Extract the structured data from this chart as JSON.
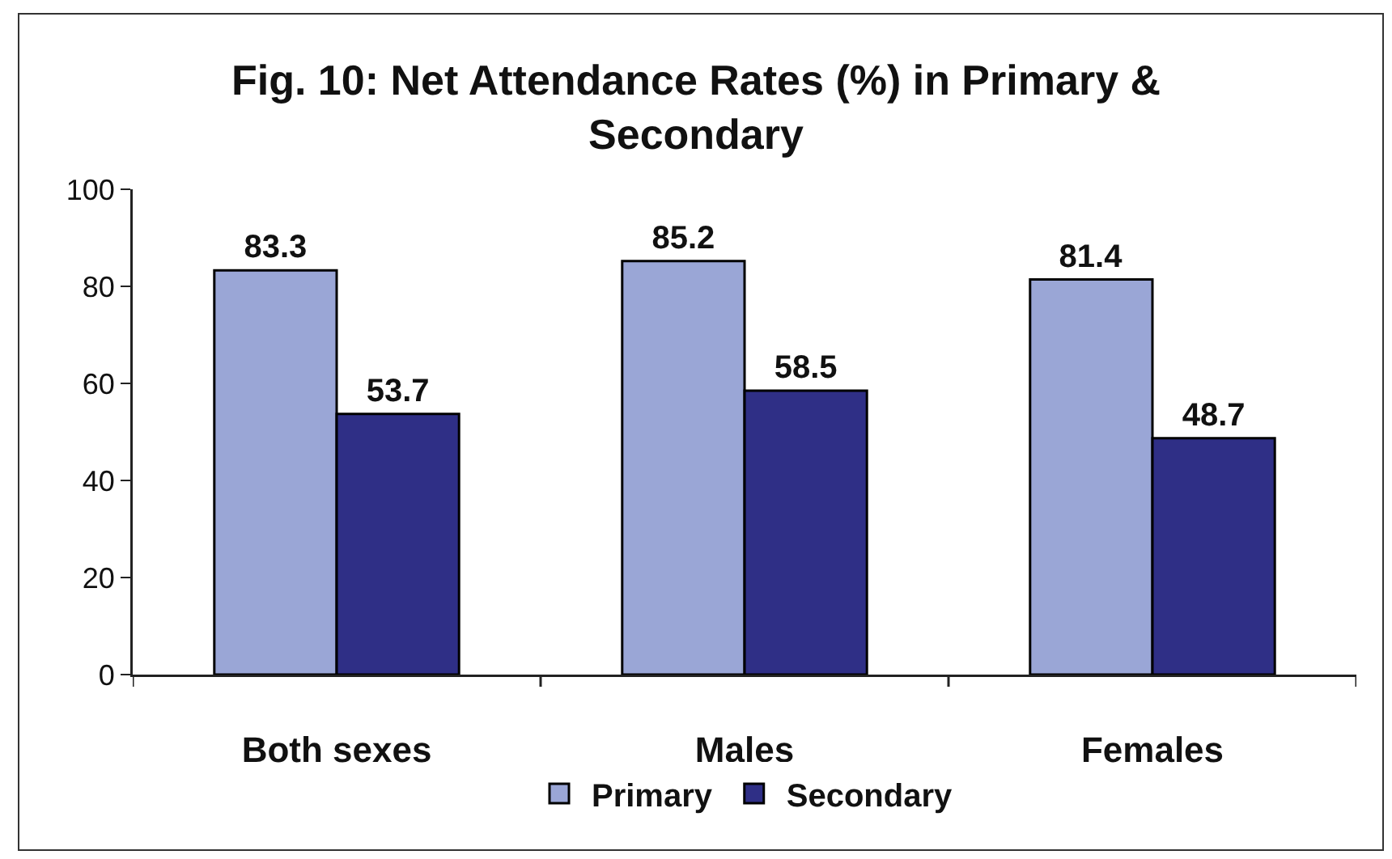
{
  "chart_data": {
    "type": "bar",
    "title": "Fig. 10: Net Attendance Rates (%) in Primary & Secondary",
    "categories": [
      "Both sexes",
      "Males",
      "Females"
    ],
    "series": [
      {
        "name": "Primary",
        "color": "#9aa6d6",
        "values": [
          83.3,
          85.2,
          81.4
        ]
      },
      {
        "name": "Secondary",
        "color": "#2f2f86",
        "values": [
          53.7,
          58.5,
          48.7
        ]
      }
    ],
    "ylim": [
      0,
      100
    ],
    "yticks": [
      0,
      20,
      40,
      60,
      80,
      100
    ],
    "data_labels": true,
    "legend": "bottom"
  }
}
